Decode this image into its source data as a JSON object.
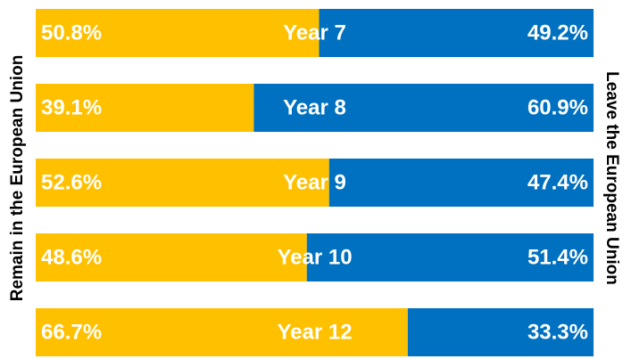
{
  "chart_data": {
    "type": "stacked-bar-horizontal",
    "categories": [
      "Year 7",
      "Year 8",
      "Year 9",
      "Year 10",
      "Year 12"
    ],
    "series": [
      {
        "name": "Remain in the European Union",
        "color": "#ffc000",
        "values": [
          50.8,
          39.1,
          52.6,
          48.6,
          66.7
        ],
        "value_labels": [
          "50.8%",
          "39.1%",
          "52.6%",
          "48.6%",
          "66.7%"
        ]
      },
      {
        "name": "Leave the European Union",
        "color": "#0070c0",
        "values": [
          49.2,
          60.9,
          47.4,
          51.4,
          33.3
        ],
        "value_labels": [
          "49.2%",
          "60.9%",
          "47.4%",
          "51.4%",
          "33.3%"
        ]
      }
    ],
    "xlim": [
      0,
      100
    ]
  }
}
